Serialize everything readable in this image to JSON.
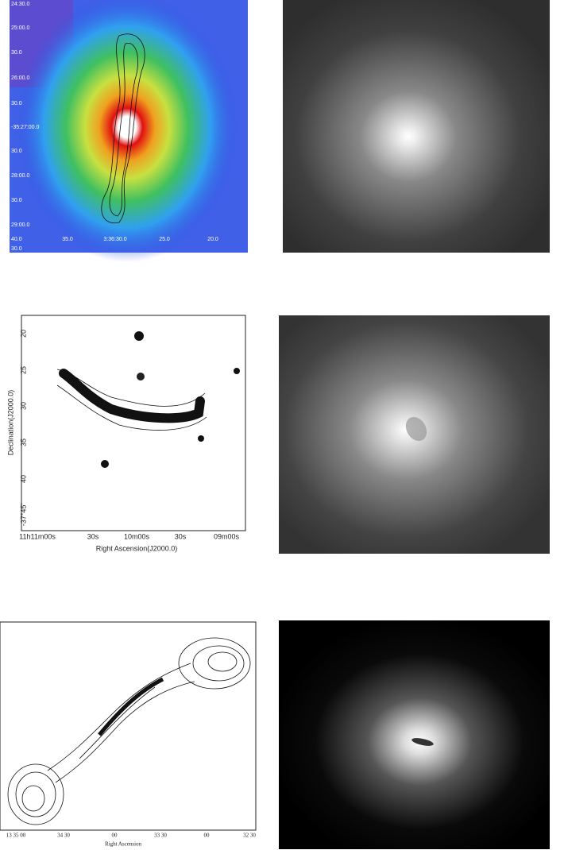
{
  "panels": [
    {
      "y_labels": [
        "24:30.0",
        "25:00.0",
        "30.0",
        "26:00.0",
        "30.0",
        "-35:27:00.0",
        "30.0",
        "28:00.0",
        "30.0",
        "29:00.0",
        "40.0",
        "30.0"
      ],
      "x_labels": [
        "35.0",
        "3:36:30.0",
        "25.0",
        "20.0"
      ]
    },
    {
      "y_labels": [
        "20",
        "25",
        "30",
        "35",
        "40",
        "-37°45'"
      ],
      "x_labels": [
        "11h11m00s",
        "30s",
        "10m00s",
        "30s",
        "09m00s"
      ],
      "x_title": "Right Ascension(J2000.0)",
      "y_title": "Declination(J2000.0)"
    },
    {
      "x_labels": [
        "13 35 00",
        "34 30",
        "00",
        "33 30",
        "00",
        "32 30"
      ],
      "x_title": "Right Ascension"
    }
  ]
}
